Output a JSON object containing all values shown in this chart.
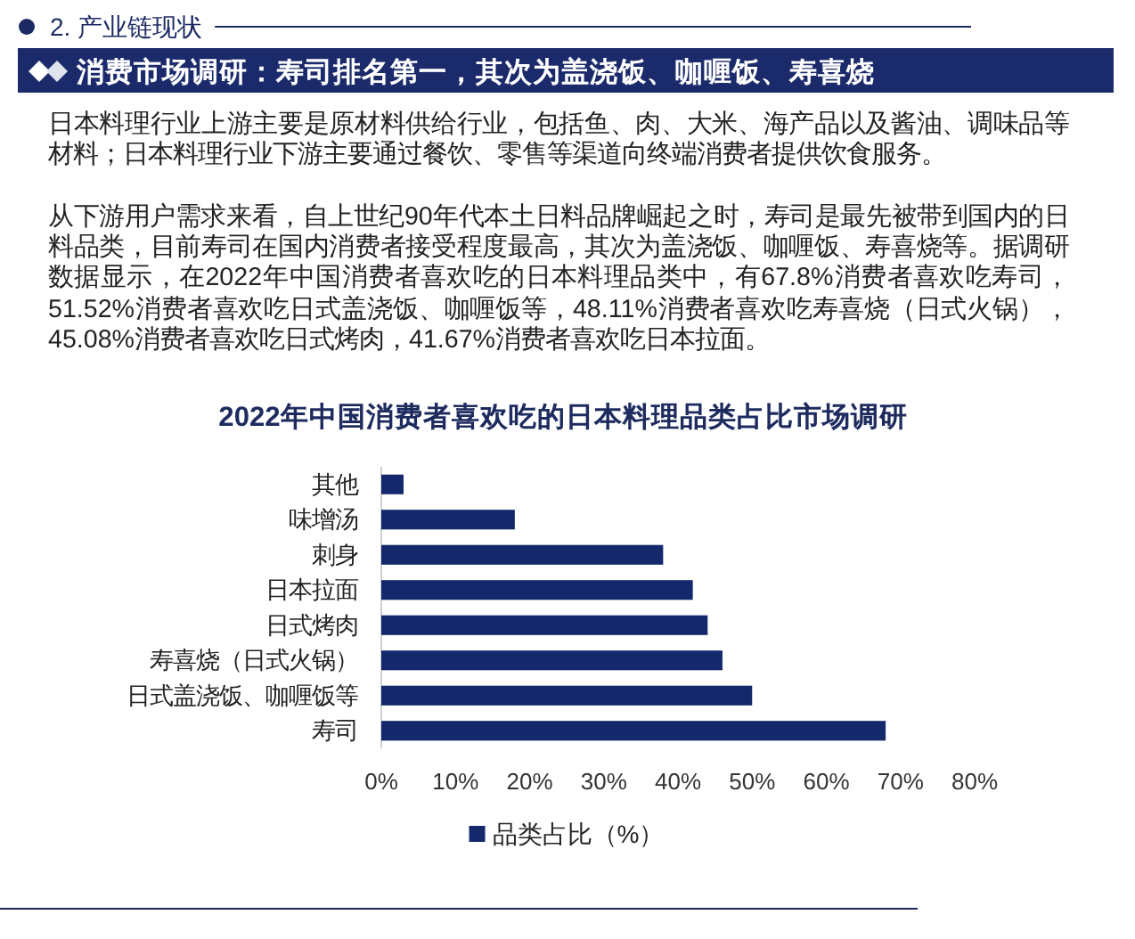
{
  "chart_data": {
    "type": "bar",
    "orientation": "horizontal",
    "title": "2022年中国消费者喜欢吃的日本料理品类占比市场调研",
    "annotations": [
      "2. 产业链现状",
      "消费市场调研：寿司排名第一，其次为盖浇饭、咖喱饭、寿喜烧",
      "日本料理行业上游主要是原材料供给行业，包括鱼、肉、大米、海产品以及酱油、调味品等材料；日本料理行业下游主要通过餐饮、零售等渠道向终端消费者提供饮食服务。",
      "从下游用户需求来看，自上世纪90年代本土日料品牌崛起之时，寿司是最先被带到国内的日料品类，目前寿司在国内消费者接受程度最高，其次为盖浇饭、咖喱饭、寿喜烧等。据调研数据显示，在2022年中国消费者喜欢吃的日本料理品类中，有67.8%消费者喜欢吃寿司，51.52%消费者喜欢吃日式盖浇饭、咖喱饭等，48.11%消费者喜欢吃寿喜烧（日式火锅），45.08%消费者喜欢吃日式烤肉，41.67%消费者喜欢吃日本拉面。"
    ],
    "categories": [
      "其他",
      "味增汤",
      "刺身",
      "日本拉面",
      "日式烤肉",
      "寿喜烧（日式火锅）",
      "日式盖浇饭、咖喱饭等",
      "寿司"
    ],
    "series": [
      {
        "name": "品类占比（%）",
        "color": "#13296b",
        "values": [
          3,
          18,
          38,
          42,
          44,
          46,
          50,
          68
        ]
      }
    ],
    "xlim": [
      0,
      80
    ],
    "xticks": [
      {
        "value": 0,
        "label": "0%"
      },
      {
        "value": 10,
        "label": "10%"
      },
      {
        "value": 20,
        "label": "20%"
      },
      {
        "value": 30,
        "label": "30%"
      },
      {
        "value": 40,
        "label": "40%"
      },
      {
        "value": 50,
        "label": "50%"
      },
      {
        "value": 60,
        "label": "60%"
      },
      {
        "value": 70,
        "label": "70%"
      },
      {
        "value": 80,
        "label": "80%"
      }
    ],
    "legend": "bottom"
  }
}
